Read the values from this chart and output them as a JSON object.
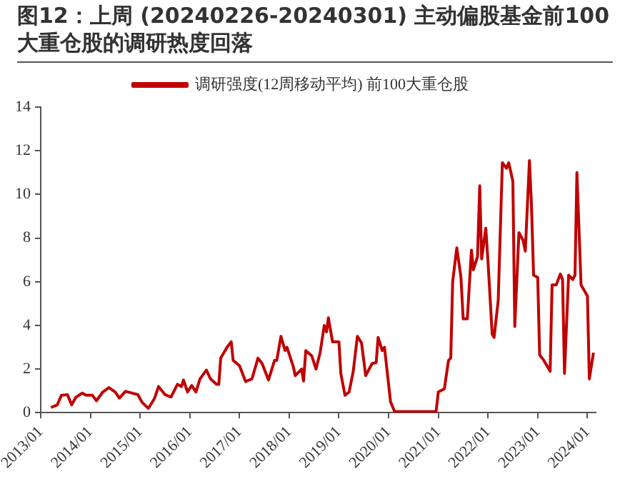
{
  "chart_data": {
    "type": "line",
    "title": "图12：上周 (20240226-20240301) 主动偏股基金前100 大重仓股的调研热度回落",
    "x": [
      "2013-03-15",
      "2013-05-01",
      "2013-06-01",
      "2013-07-15",
      "2013-08-15",
      "2013-09-15",
      "2013-11-01",
      "2013-12-01",
      "2014-01-15",
      "2014-02-15",
      "2014-04-01",
      "2014-05-15",
      "2014-07-01",
      "2014-08-01",
      "2014-09-15",
      "2014-10-15",
      "2014-12-15",
      "2015-01-15",
      "2015-03-01",
      "2015-04-15",
      "2015-05-15",
      "2015-07-01",
      "2015-08-15",
      "2015-10-01",
      "2015-11-01",
      "2015-11-15",
      "2015-12-15",
      "2016-01-15",
      "2016-02-15",
      "2016-03-15",
      "2016-05-01",
      "2016-06-01",
      "2016-07-15",
      "2016-08-01",
      "2016-08-15",
      "2016-10-01",
      "2016-11-01",
      "2016-11-15",
      "2017-01-01",
      "2017-02-15",
      "2017-04-01",
      "2017-05-15",
      "2017-06-15",
      "2017-08-01",
      "2017-09-15",
      "2017-10-01",
      "2017-11-01",
      "2017-12-01",
      "2017-12-15",
      "2018-02-01",
      "2018-02-15",
      "2018-04-01",
      "2018-04-15",
      "2018-05-01",
      "2018-06-15",
      "2018-07-15",
      "2018-08-15",
      "2018-09-15",
      "2018-10-01",
      "2018-10-15",
      "2018-11-15",
      "2019-01-01",
      "2019-01-15",
      "2019-02-15",
      "2019-03-15",
      "2019-04-15",
      "2019-05-15",
      "2019-06-15",
      "2019-07-15",
      "2019-09-01",
      "2019-10-01",
      "2019-10-15",
      "2019-11-15",
      "2019-12-01",
      "2020-01-15",
      "2020-02-15",
      "2020-12-15",
      "2021-01-01",
      "2021-02-15",
      "2021-03-15",
      "2021-04-01",
      "2021-04-15",
      "2021-05-15",
      "2021-06-15",
      "2021-07-01",
      "2021-08-01",
      "2021-09-01",
      "2021-09-15",
      "2021-10-15",
      "2021-11-01",
      "2021-11-15",
      "2021-12-15",
      "2022-01-01",
      "2022-02-01",
      "2022-02-15",
      "2022-03-15",
      "2022-04-15",
      "2022-05-15",
      "2022-06-01",
      "2022-07-01",
      "2022-07-15",
      "2022-08-15",
      "2022-09-15",
      "2022-10-01",
      "2022-11-01",
      "2022-11-15",
      "2022-12-01",
      "2023-01-01",
      "2023-01-15",
      "2023-02-15",
      "2023-04-01",
      "2023-04-15",
      "2023-05-15",
      "2023-06-15",
      "2023-07-01",
      "2023-07-15",
      "2023-08-15",
      "2023-09-15",
      "2023-10-01",
      "2023-10-15",
      "2023-11-15",
      "2024-01-01",
      "2024-01-15",
      "2024-02-15"
    ],
    "series": [
      {
        "name": "调研强度(12周移动平均) 前100大重仓股",
        "color": "#c00000",
        "values": [
          0.24,
          0.36,
          0.8,
          0.83,
          0.36,
          0.7,
          0.9,
          0.8,
          0.8,
          0.55,
          0.95,
          1.15,
          0.95,
          0.67,
          0.98,
          0.93,
          0.83,
          0.48,
          0.2,
          0.65,
          1.2,
          0.83,
          0.72,
          1.3,
          1.2,
          1.5,
          0.95,
          1.25,
          0.95,
          1.55,
          1.95,
          1.55,
          1.3,
          1.3,
          2.5,
          3.0,
          3.25,
          2.4,
          2.15,
          1.43,
          1.55,
          2.5,
          2.25,
          1.5,
          2.4,
          2.4,
          3.5,
          2.85,
          3.0,
          2.1,
          1.7,
          2.0,
          1.45,
          2.85,
          2.6,
          2.0,
          2.75,
          4.0,
          3.7,
          4.35,
          3.25,
          3.25,
          1.8,
          0.8,
          0.95,
          1.9,
          3.5,
          3.2,
          1.7,
          2.25,
          2.3,
          3.45,
          2.85,
          3.0,
          0.5,
          0.05,
          0.05,
          0.95,
          1.1,
          2.4,
          2.5,
          6.0,
          7.55,
          6.2,
          4.3,
          4.3,
          7.45,
          6.55,
          7.15,
          10.4,
          7.05,
          8.45,
          6.9,
          3.6,
          3.45,
          5.15,
          11.45,
          11.2,
          11.45,
          10.6,
          3.95,
          8.25,
          7.9,
          7.4,
          11.55,
          9.65,
          6.3,
          6.2,
          2.65,
          2.4,
          1.9,
          5.85,
          5.85,
          6.35,
          6.1,
          1.8,
          6.3,
          6.1,
          6.3,
          11.0,
          5.85,
          5.35,
          1.55,
          2.75
        ]
      }
    ],
    "xlim": [
      "2013-01",
      "2024-03"
    ],
    "xticks": [
      {
        "value": "2013-01",
        "label": "2013/01"
      },
      {
        "value": "2014-01",
        "label": "2014/01"
      },
      {
        "value": "2015-01",
        "label": "2015/01"
      },
      {
        "value": "2016-01",
        "label": "2016/01"
      },
      {
        "value": "2017-01",
        "label": "2017/01"
      },
      {
        "value": "2018-01",
        "label": "2018/01"
      },
      {
        "value": "2019-01",
        "label": "2019/01"
      },
      {
        "value": "2020-01",
        "label": "2020/01"
      },
      {
        "value": "2021-01",
        "label": "2021/01"
      },
      {
        "value": "2022-01",
        "label": "2022/01"
      },
      {
        "value": "2023-01",
        "label": "2023/01"
      },
      {
        "value": "2024-01",
        "label": "2024/01"
      }
    ],
    "ylim": [
      0,
      14
    ],
    "yticks": [
      0,
      2,
      4,
      6,
      8,
      10,
      12,
      14
    ],
    "grid": false,
    "legend": "top",
    "marker": "none",
    "line_style": "solid"
  }
}
